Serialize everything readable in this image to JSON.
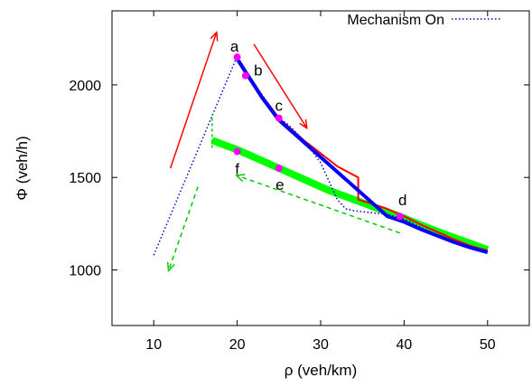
{
  "chart_data": {
    "type": "line",
    "title": "",
    "xlabel": "ρ (veh/km)",
    "ylabel": "Φ (veh/h)",
    "xlim": [
      5,
      55
    ],
    "ylim": [
      700,
      2400
    ],
    "xticks": [
      10,
      20,
      30,
      40,
      50
    ],
    "yticks": [
      1000,
      1500,
      2000
    ],
    "grid": false,
    "legend_position": "top-right",
    "legend": [
      {
        "label": "Mechanism On",
        "color": "#0000cc",
        "style": "dotted"
      }
    ],
    "colors": {
      "red": "#ff0000",
      "blue": "#0000ff",
      "green": "#00ff00",
      "dashed_green": "#00cc00",
      "marker": "#ff00ff",
      "dotted_blue": "#0000cc"
    },
    "series": [
      {
        "name": "Mechanism On",
        "style": "dotted",
        "color": "#0000cc",
        "x": [
          10,
          12,
          14,
          16,
          18,
          20,
          22,
          24,
          25,
          26,
          28,
          30,
          31,
          32,
          33,
          34,
          36,
          38,
          40,
          42,
          44,
          46,
          48,
          50
        ],
        "y": [
          1080,
          1295,
          1510,
          1725,
          1940,
          2155,
          2010,
          1880,
          1820,
          1790,
          1700,
          1580,
          1480,
          1380,
          1330,
          1320,
          1310,
          1300,
          1275,
          1230,
          1190,
          1150,
          1120,
          1100
        ]
      },
      {
        "style": "solid",
        "color": "#ff0000",
        "x": [
          20,
          21,
          22,
          23,
          24,
          25,
          26,
          28,
          30,
          32,
          34.5,
          34.5,
          36,
          38,
          40,
          42,
          44,
          46,
          48,
          50
        ],
        "y": [
          2150,
          2080,
          2010,
          1940,
          1880,
          1820,
          1780,
          1700,
          1630,
          1560,
          1500,
          1380,
          1360,
          1330,
          1290,
          1245,
          1205,
          1165,
          1130,
          1105
        ]
      },
      {
        "style": "solid",
        "color": "#0000ff",
        "x": [
          20,
          21,
          22,
          23,
          24,
          25,
          38,
          40,
          42,
          44,
          46,
          48,
          50
        ],
        "y": [
          2140,
          2070,
          2000,
          1930,
          1870,
          1810,
          1290,
          1260,
          1220,
          1185,
          1150,
          1120,
          1095
        ]
      },
      {
        "style": "solid",
        "color": "#00ff00",
        "x": [
          17,
          20,
          22,
          25,
          28,
          31,
          34,
          37,
          40,
          43,
          46,
          50
        ],
        "y": [
          1700,
          1650,
          1610,
          1550,
          1490,
          1430,
          1380,
          1330,
          1280,
          1225,
          1175,
          1110
        ]
      }
    ],
    "green_branch": {
      "x": [
        17,
        17
      ],
      "y": [
        1660,
        1840
      ]
    },
    "markers": [
      {
        "label": "a",
        "x": 20,
        "y": 2150
      },
      {
        "label": "b",
        "x": 21,
        "y": 2050
      },
      {
        "label": "c",
        "x": 25,
        "y": 1820
      },
      {
        "label": "d",
        "x": 39.5,
        "y": 1290
      },
      {
        "label": "e",
        "x": 25,
        "y": 1550
      },
      {
        "label": "f",
        "x": 20,
        "y": 1640
      }
    ],
    "arrows": [
      {
        "color": "#ff0000",
        "dashed": false,
        "from": [
          12,
          1550
        ],
        "to": [
          17.5,
          2280
        ]
      },
      {
        "color": "#ff0000",
        "dashed": false,
        "from": [
          22,
          2220
        ],
        "to": [
          28.3,
          1770
        ]
      },
      {
        "color": "#00cc00",
        "dashed": true,
        "from": [
          39.5,
          1200
        ],
        "to": [
          20,
          1510
        ]
      },
      {
        "color": "#00cc00",
        "dashed": true,
        "from": [
          15.3,
          1450
        ],
        "to": [
          11.8,
          1000
        ]
      }
    ]
  }
}
